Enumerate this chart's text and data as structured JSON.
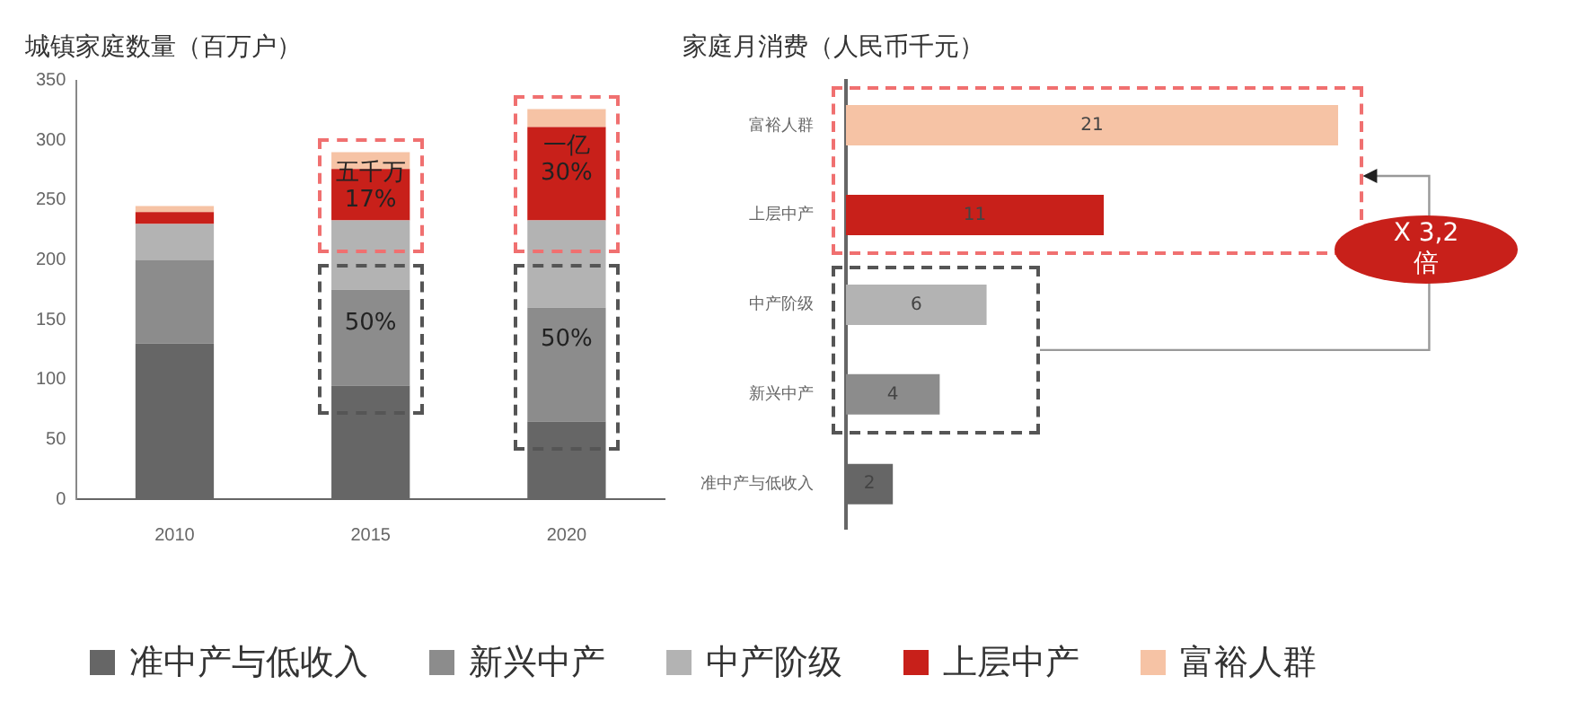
{
  "chart_data": [
    {
      "type": "bar",
      "title": "城镇家庭数量（百万户）",
      "categories": [
        "2010",
        "2015",
        "2020"
      ],
      "stacked": true,
      "series": [
        {
          "name": "准中产与低收入",
          "color": "#666666",
          "values": [
            130,
            95,
            65
          ]
        },
        {
          "name": "新兴中产",
          "color": "#8c8c8c",
          "values": [
            70,
            80,
            95
          ]
        },
        {
          "name": "中产阶级",
          "color": "#b3b3b3",
          "values": [
            30,
            58,
            73
          ]
        },
        {
          "name": "上层中产",
          "color": "#c8201a",
          "values": [
            10,
            43,
            78
          ]
        },
        {
          "name": "富裕人群",
          "color": "#f6c3a5",
          "values": [
            5,
            14,
            15
          ]
        }
      ],
      "ylim": [
        0,
        350
      ],
      "yticks": [
        0,
        50,
        100,
        150,
        200,
        250,
        300,
        350
      ],
      "grid": false,
      "legend": "bottom",
      "annotations": [
        "五千万 17%",
        "50%",
        "一亿 30%",
        "50%"
      ]
    },
    {
      "type": "bar",
      "orientation": "horizontal",
      "title": "家庭月消费（人民币千元）",
      "categories": [
        "富裕人群",
        "上层中产",
        "中产阶级",
        "新兴中产",
        "准中产与低收入"
      ],
      "values": [
        21,
        11,
        6,
        4,
        2
      ],
      "colors": [
        "#f6c3a5",
        "#c8201a",
        "#b3b3b3",
        "#8c8c8c",
        "#666666"
      ],
      "data_labels": true,
      "tick_labels": "y",
      "grid": false,
      "annotations": [
        "X 3,2 倍"
      ]
    }
  ]
}
